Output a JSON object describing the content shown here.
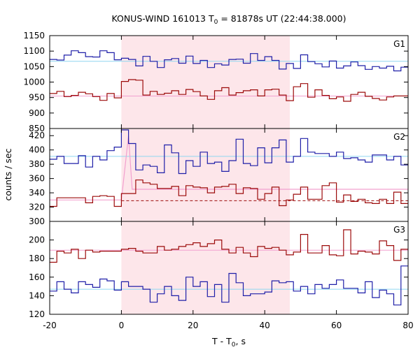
{
  "title": {
    "pre": "KONUS-WIND 161013 T",
    "sub": "0",
    "post": " = 81878s UT (22:44:38.000)"
  },
  "xlabel": {
    "pre": "T - T",
    "sub": "0",
    "post": ", s"
  },
  "ylabel": "counts / sec",
  "chart_data": {
    "type": "line",
    "xlim": [
      -20,
      80
    ],
    "x_ticks": [
      -20,
      0,
      20,
      40,
      60,
      80
    ],
    "x_tick_labels": [
      "-20",
      "0",
      "20",
      "40",
      "60",
      "80"
    ],
    "shaded_interval": [
      0,
      47
    ],
    "colors": {
      "blue": "#1f1fa8",
      "red": "#9c0b0b",
      "bg_line": "#8fd6f0",
      "pink_line": "#f2a0cf",
      "shade": "#fde6ea"
    },
    "panels": [
      {
        "name": "G1",
        "ylim": [
          850,
          1150
        ],
        "y_ticks": [
          850,
          900,
          950,
          1000,
          1050,
          1100,
          1150
        ],
        "y_tick_labels": [
          "850",
          "900",
          "950",
          "1000",
          "1050",
          "1100",
          "1150"
        ],
        "bg_levels": [
          {
            "series": "blue",
            "value": 1067,
            "color": "bg_line"
          },
          {
            "series": "red",
            "value": 955,
            "color": "pink_line"
          }
        ],
        "series": [
          {
            "color": "blue",
            "x": [
              -20,
              -18,
              -16,
              -14,
              -12,
              -10,
              -8,
              -6,
              -4,
              -2,
              0,
              2,
              4,
              6,
              8,
              10,
              12,
              14,
              16,
              18,
              20,
              22,
              24,
              26,
              28,
              30,
              32,
              34,
              36,
              38,
              40,
              42,
              44,
              46,
              48,
              50,
              52,
              54,
              56,
              58,
              60,
              62,
              64,
              66,
              68,
              70,
              72,
              74,
              76,
              78,
              80
            ],
            "y": [
              1073,
              1071,
              1087,
              1101,
              1095,
              1082,
              1081,
              1101,
              1095,
              1072,
              1077,
              1073,
              1052,
              1083,
              1067,
              1047,
              1072,
              1076,
              1061,
              1084,
              1060,
              1070,
              1047,
              1059,
              1055,
              1073,
              1074,
              1061,
              1092,
              1070,
              1082,
              1070,
              1042,
              1060,
              1044,
              1088,
              1066,
              1059,
              1049,
              1068,
              1045,
              1052,
              1065,
              1053,
              1041,
              1050,
              1045,
              1051,
              1036,
              1048,
              1045
            ]
          },
          {
            "color": "red",
            "x": [
              -20,
              -18,
              -16,
              -14,
              -12,
              -10,
              -8,
              -6,
              -4,
              -2,
              0,
              2,
              4,
              6,
              8,
              10,
              12,
              14,
              16,
              18,
              20,
              22,
              24,
              26,
              28,
              30,
              32,
              34,
              36,
              38,
              40,
              42,
              44,
              46,
              48,
              50,
              52,
              54,
              56,
              58,
              60,
              62,
              64,
              66,
              68,
              70,
              72,
              74,
              76,
              78,
              80
            ],
            "y": [
              963,
              970,
              953,
              957,
              967,
              962,
              953,
              941,
              963,
              949,
              1002,
              1008,
              1006,
              958,
              970,
              960,
              964,
              972,
              960,
              976,
              969,
              955,
              944,
              972,
              982,
              958,
              966,
              972,
              975,
              955,
              975,
              977,
              958,
              940,
              985,
              995,
              951,
              975,
              957,
              946,
              952,
              938,
              960,
              967,
              954,
              947,
              942,
              952,
              955,
              955,
              952
            ]
          }
        ]
      },
      {
        "name": "G2",
        "ylim": [
          300,
          430
        ],
        "y_ticks": [
          300,
          320,
          340,
          360,
          380,
          400,
          420
        ],
        "y_tick_labels": [
          "300",
          "320",
          "340",
          "360",
          "380",
          "400",
          "420"
        ],
        "bg_levels": [
          {
            "series": "blue",
            "value": 391,
            "color": "bg_line"
          },
          {
            "series": "red",
            "value": 329,
            "color": "red",
            "dashed": true
          }
        ],
        "pink_model": {
          "x": [
            -20,
            -2,
            0,
            2,
            3,
            80
          ],
          "y": [
            330,
            330,
            330,
            420,
            345,
            345
          ]
        },
        "series": [
          {
            "color": "blue",
            "x": [
              -20,
              -18,
              -16,
              -14,
              -12,
              -10,
              -8,
              -6,
              -4,
              -2,
              0,
              2,
              4,
              6,
              8,
              10,
              12,
              14,
              16,
              18,
              20,
              22,
              24,
              26,
              28,
              30,
              32,
              34,
              36,
              38,
              40,
              42,
              44,
              46,
              48,
              50,
              52,
              54,
              56,
              58,
              60,
              62,
              64,
              66,
              68,
              70,
              72,
              74,
              76,
              78,
              80
            ],
            "y": [
              387,
              391,
              381,
              381,
              392,
              376,
              391,
              386,
              399,
              404,
              428,
              409,
              372,
              379,
              377,
              368,
              407,
              396,
              367,
              385,
              377,
              397,
              381,
              383,
              370,
              385,
              415,
              381,
              378,
              403,
              382,
              403,
              414,
              383,
              391,
              416,
              397,
              395,
              395,
              391,
              397,
              388,
              389,
              386,
              383,
              393,
              393,
              386,
              391,
              379,
              391
            ]
          },
          {
            "color": "red",
            "x": [
              -20,
              -18,
              -16,
              -14,
              -12,
              -10,
              -8,
              -6,
              -4,
              -2,
              0,
              2,
              4,
              6,
              8,
              10,
              12,
              14,
              16,
              18,
              20,
              22,
              24,
              26,
              28,
              30,
              32,
              34,
              36,
              38,
              40,
              42,
              44,
              46,
              48,
              50,
              52,
              54,
              56,
              58,
              60,
              62,
              64,
              66,
              68,
              70,
              72,
              74,
              76,
              78,
              80
            ],
            "y": [
              321,
              333,
              333,
              333,
              333,
              326,
              335,
              336,
              335,
              321,
              339,
              339,
              358,
              354,
              352,
              346,
              346,
              349,
              336,
              350,
              348,
              347,
              340,
              348,
              349,
              352,
              339,
              347,
              346,
              331,
              339,
              348,
              322,
              330,
              338,
              348,
              331,
              331,
              350,
              354,
              327,
              337,
              328,
              331,
              326,
              325,
              331,
              325,
              341,
              325,
              340
            ]
          }
        ]
      },
      {
        "name": "G3",
        "ylim": [
          120,
          220
        ],
        "y_ticks": [
          120,
          140,
          160,
          180,
          200
        ],
        "y_tick_labels": [
          "120",
          "140",
          "160",
          "180",
          "200"
        ],
        "bg_levels": [
          {
            "series": "blue",
            "value": 147,
            "color": "bg_line"
          },
          {
            "series": "red",
            "value": 189,
            "color": "pink_line"
          }
        ],
        "series": [
          {
            "color": "blue",
            "x": [
              -20,
              -18,
              -16,
              -14,
              -12,
              -10,
              -8,
              -6,
              -4,
              -2,
              0,
              2,
              4,
              6,
              8,
              10,
              12,
              14,
              16,
              18,
              20,
              22,
              24,
              26,
              28,
              30,
              32,
              34,
              36,
              38,
              40,
              42,
              44,
              46,
              48,
              50,
              52,
              54,
              56,
              58,
              60,
              62,
              64,
              66,
              68,
              70,
              72,
              74,
              76,
              78,
              80
            ],
            "y": [
              145,
              155,
              147,
              143,
              155,
              152,
              149,
              158,
              156,
              146,
              155,
              150,
              150,
              147,
              133,
              142,
              150,
              140,
              135,
              160,
              150,
              155,
              139,
              152,
              133,
              164,
              154,
              140,
              142,
              142,
              144,
              156,
              154,
              155,
              145,
              150,
              142,
              152,
              148,
              152,
              157,
              148,
              148,
              143,
              155,
              138,
              146,
              142,
              130,
              172,
              172
            ]
          },
          {
            "color": "red",
            "x": [
              -20,
              -18,
              -16,
              -14,
              -12,
              -10,
              -8,
              -6,
              -4,
              -2,
              0,
              2,
              4,
              6,
              8,
              10,
              12,
              14,
              16,
              18,
              20,
              22,
              24,
              26,
              28,
              30,
              32,
              34,
              36,
              38,
              40,
              42,
              44,
              46,
              48,
              50,
              52,
              54,
              56,
              58,
              60,
              62,
              64,
              66,
              68,
              70,
              72,
              74,
              76,
              78,
              80
            ],
            "y": [
              176,
              188,
              186,
              190,
              180,
              189,
              187,
              188,
              188,
              188,
              190,
              191,
              188,
              186,
              186,
              193,
              189,
              190,
              193,
              195,
              197,
              193,
              196,
              200,
              190,
              186,
              192,
              186,
              182,
              193,
              191,
              192,
              189,
              184,
              187,
              206,
              186,
              186,
              194,
              184,
              183,
              211,
              185,
              188,
              187,
              185,
              199,
              194,
              178,
              190,
              190
            ]
          }
        ]
      }
    ]
  }
}
